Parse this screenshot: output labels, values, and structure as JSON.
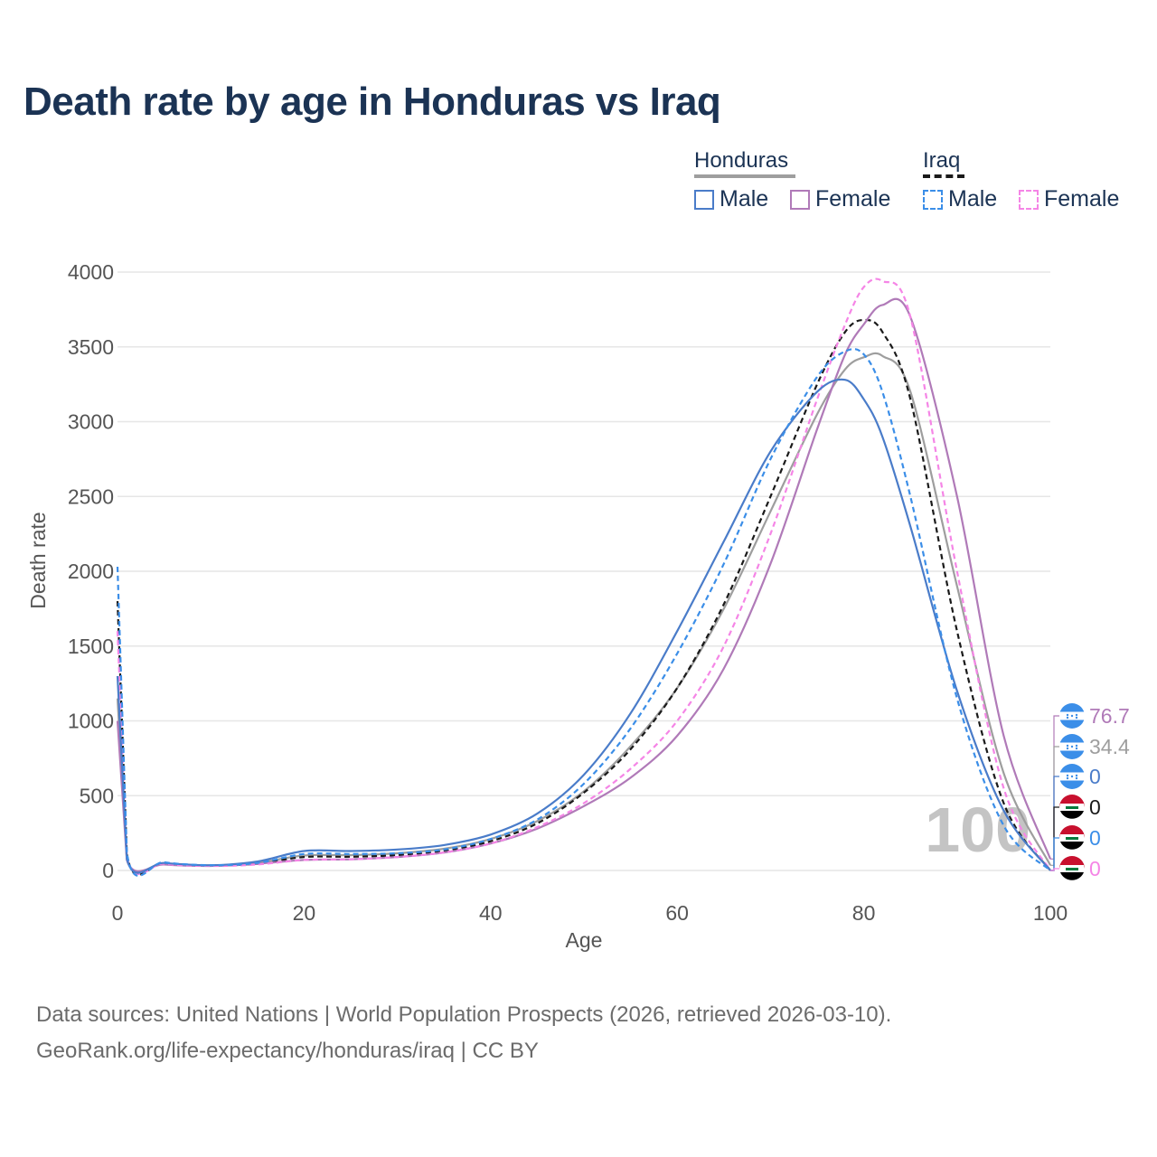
{
  "title": "Death rate by age in Honduras vs Iraq",
  "legend": {
    "honduras": {
      "label": "Honduras",
      "male": "Male",
      "female": "Female"
    },
    "iraq": {
      "label": "Iraq",
      "male": "Male",
      "female": "Female"
    }
  },
  "source": {
    "line1": "Data sources: United Nations | World Population Prospects (2026, retrieved 2026-03-10).",
    "line2": "GeoRank.org/life-expectancy/honduras/iraq | CC BY"
  },
  "colors": {
    "honduras_male": "#4a7cc9",
    "honduras_female": "#b07ab8",
    "honduras_total": "#9e9e9e",
    "iraq_male": "#3b8ee8",
    "iraq_female": "#f585e6",
    "iraq_total": "#1a1a1a",
    "title": "#1b3354"
  },
  "chart_data": {
    "type": "line",
    "title": "Death rate by age in Honduras vs Iraq",
    "xlabel": "Age",
    "ylabel": "Death rate",
    "xlim": [
      0,
      100
    ],
    "ylim": [
      0,
      4000
    ],
    "x_ticks": [
      0,
      20,
      40,
      60,
      80,
      100
    ],
    "y_ticks": [
      0,
      500,
      1000,
      1500,
      2000,
      2500,
      3000,
      3500,
      4000
    ],
    "grid": true,
    "watermark": "100",
    "x": [
      0,
      1,
      5,
      10,
      15,
      20,
      25,
      30,
      35,
      40,
      45,
      50,
      55,
      60,
      65,
      70,
      75,
      78,
      80,
      82,
      85,
      90,
      95,
      100
    ],
    "series": [
      {
        "name": "Honduras Male",
        "country": "Honduras",
        "style": "solid",
        "color_key": "honduras_male",
        "values": [
          1300,
          80,
          50,
          35,
          60,
          130,
          130,
          140,
          170,
          240,
          380,
          640,
          1050,
          1600,
          2200,
          2800,
          3200,
          3280,
          3150,
          2900,
          2300,
          1200,
          400,
          0
        ],
        "end_label": "0"
      },
      {
        "name": "Honduras Female",
        "country": "Honduras",
        "style": "solid",
        "color_key": "honduras_female",
        "values": [
          1000,
          70,
          40,
          30,
          45,
          70,
          75,
          90,
          120,
          180,
          280,
          430,
          620,
          900,
          1350,
          2050,
          2950,
          3450,
          3650,
          3780,
          3700,
          2500,
          900,
          76.7
        ],
        "end_label": "76.7"
      },
      {
        "name": "Honduras Total",
        "country": "Honduras",
        "style": "solid",
        "color_key": "honduras_total",
        "values": [
          1150,
          75,
          45,
          33,
          52,
          100,
          102,
          115,
          145,
          210,
          330,
          530,
          830,
          1220,
          1750,
          2400,
          3050,
          3350,
          3430,
          3440,
          3200,
          1900,
          650,
          34.4
        ],
        "end_label": "34.4"
      },
      {
        "name": "Iraq Male",
        "country": "Iraq",
        "style": "dashed",
        "color_key": "iraq_male",
        "values": [
          2030,
          120,
          55,
          35,
          50,
          110,
          110,
          115,
          140,
          210,
          340,
          580,
          950,
          1450,
          2050,
          2750,
          3300,
          3470,
          3450,
          3200,
          2500,
          1150,
          300,
          0
        ],
        "end_label": "0"
      },
      {
        "name": "Iraq Female",
        "country": "Iraq",
        "style": "dashed",
        "color_key": "iraq_female",
        "values": [
          1600,
          100,
          45,
          30,
          40,
          70,
          75,
          90,
          120,
          180,
          290,
          450,
          680,
          1000,
          1500,
          2250,
          3150,
          3650,
          3900,
          3940,
          3700,
          2000,
          550,
          0
        ],
        "end_label": "0"
      },
      {
        "name": "Iraq Total",
        "country": "Iraq",
        "style": "dashed",
        "color_key": "iraq_total",
        "values": [
          1800,
          110,
          50,
          33,
          45,
          90,
          92,
          102,
          130,
          195,
          315,
          520,
          810,
          1220,
          1780,
          2500,
          3250,
          3600,
          3680,
          3600,
          3150,
          1600,
          450,
          0
        ],
        "end_label": "0"
      }
    ]
  }
}
